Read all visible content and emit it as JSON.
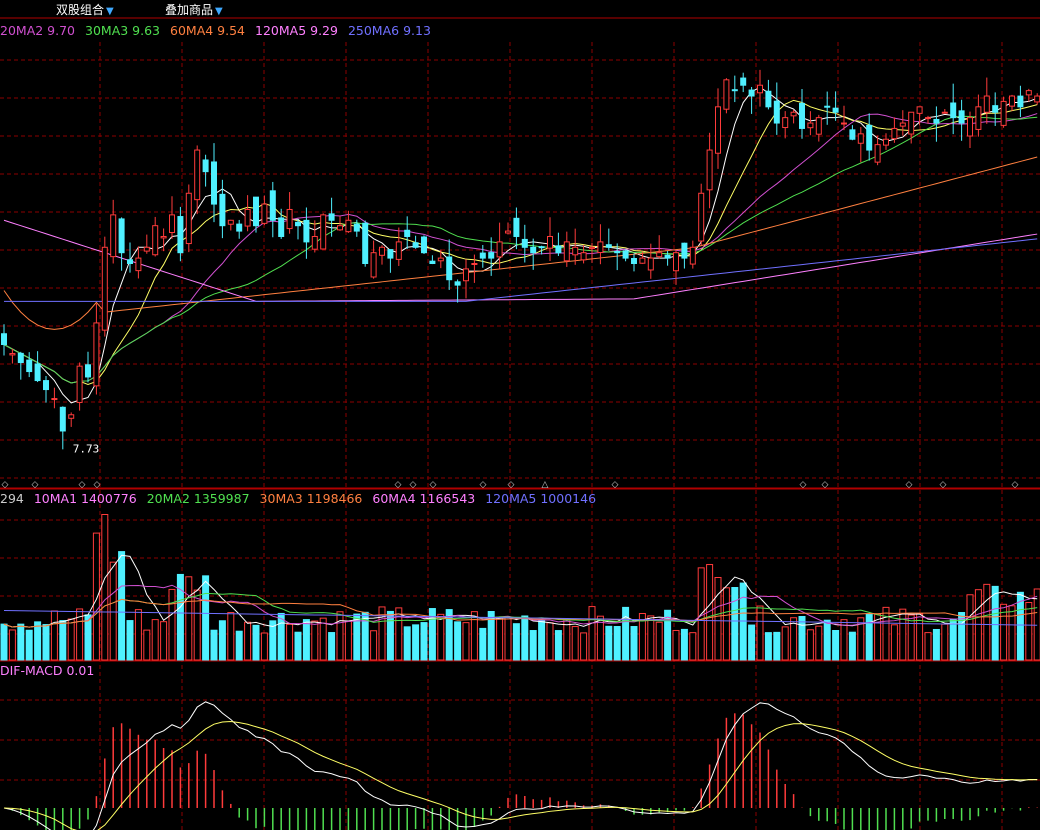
{
  "toolbar": {
    "items": [
      {
        "label": "双股组合",
        "arrow": "▼"
      },
      {
        "label": "叠加商品",
        "arrow": "▼"
      }
    ]
  },
  "colors": {
    "up": "#ff3b3b",
    "down": "#4ff0ff",
    "grid": "#8b0000",
    "ma5": "#ffffff",
    "ma10": "#ffff66",
    "ma20": "#d050d0",
    "ma30": "#50e050",
    "ma60": "#ff8040",
    "ma120": "#ff80ff",
    "ma250": "#7070ff"
  },
  "chart_data": [
    {
      "type": "candlestick",
      "panel": "price",
      "legend": [
        {
          "name": "20MA2",
          "value": "9.70",
          "color": "#d050d0"
        },
        {
          "name": "30MA3",
          "value": "9.63",
          "color": "#50e050"
        },
        {
          "name": "60MA4",
          "value": "9.54",
          "color": "#ff8040"
        },
        {
          "name": "120MA5",
          "value": "9.29",
          "color": "#ff80ff"
        },
        {
          "name": "250MA6",
          "value": "9.13",
          "color": "#7070ff"
        }
      ],
      "ylim": [
        7.4,
        11.5
      ],
      "low_annotation": {
        "value": 7.73,
        "label": "7.73"
      },
      "marker_glyph": "◇",
      "marker_glyph_alt": "△"
    },
    {
      "type": "bar",
      "panel": "volume",
      "legend": [
        {
          "name": "",
          "value": "294",
          "color": "#cccccc"
        },
        {
          "name": "10MA1",
          "value": "1400776",
          "color": "#ff80ff"
        },
        {
          "name": "20MA2",
          "value": "1359987",
          "color": "#50e050"
        },
        {
          "name": "30MA3",
          "value": "1198466",
          "color": "#ff8040"
        },
        {
          "name": "60MA4",
          "value": "1166543",
          "color": "#ff80ff"
        },
        {
          "name": "120MA5",
          "value": "1000146",
          "color": "#7070ff"
        }
      ]
    },
    {
      "type": "line",
      "panel": "macd",
      "legend": [
        {
          "name": "DIF-MACD",
          "value": "0.01",
          "color": "#ff80ff"
        }
      ]
    }
  ]
}
